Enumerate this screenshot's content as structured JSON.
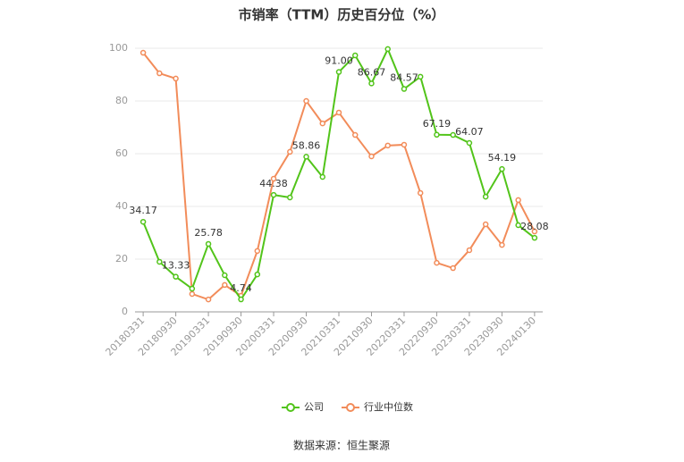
{
  "chart_data": {
    "type": "line",
    "title": "市销率（TTM）历史百分位（%）",
    "source": "数据来源：恒生聚源",
    "categories": [
      "20180331",
      null,
      "20180930",
      null,
      "20190331",
      null,
      "20190930",
      null,
      "20200331",
      null,
      "20200930",
      null,
      "20210331",
      null,
      "20210930",
      null,
      "20220331",
      null,
      "20220930",
      null,
      "20230331",
      null,
      "20230930",
      null,
      "20240130"
    ],
    "series": [
      {
        "name": "公司",
        "color": "#52c41a",
        "values": [
          34.17,
          19.0,
          13.33,
          8.8,
          25.78,
          13.9,
          4.74,
          14.2,
          44.38,
          43.4,
          58.86,
          51.2,
          91.0,
          97.3,
          86.67,
          99.7,
          84.57,
          89.2,
          67.19,
          67.1,
          64.07,
          43.7,
          54.19,
          32.9,
          28.08
        ],
        "value_labels": [
          "34.17",
          null,
          "13.33",
          null,
          "25.78",
          null,
          "4.74",
          null,
          "44.38",
          null,
          "58.86",
          null,
          "91.00",
          null,
          "86.67",
          null,
          "84.57",
          null,
          "67.19",
          null,
          "64.07",
          null,
          "54.19",
          null,
          "28.08"
        ]
      },
      {
        "name": "行业中位数",
        "color": "#f28c5a",
        "values": [
          98.3,
          90.5,
          88.5,
          6.8,
          4.7,
          10.2,
          6.1,
          23.1,
          50.5,
          60.7,
          80.0,
          71.5,
          75.6,
          67.1,
          59.0,
          63.1,
          63.4,
          45.1,
          18.6,
          16.6,
          23.4,
          33.2,
          25.4,
          42.4,
          30.5
        ]
      }
    ],
    "ylim": [
      0,
      100
    ],
    "yticks": [
      0,
      20,
      40,
      60,
      80,
      100
    ],
    "grid": true
  }
}
